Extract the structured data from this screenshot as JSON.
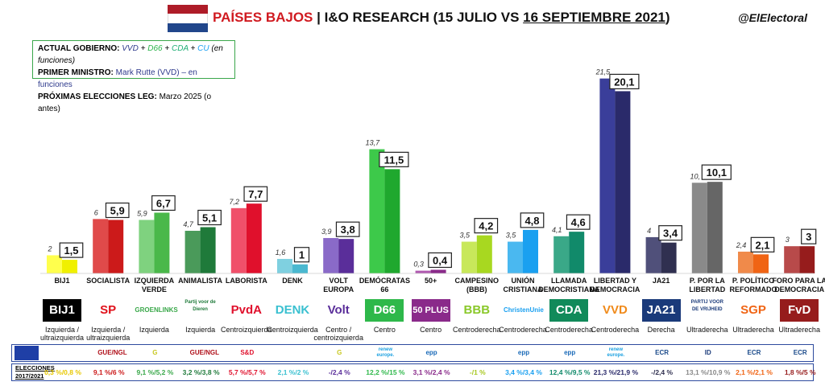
{
  "header": {
    "country": "PAÍSES BAJOS",
    "separator": " | ",
    "pollster": "I&O RESEARCH (15 JULIO VS ",
    "date_new": "16 SEPTIEMBRE 2021",
    "close_paren": ")",
    "handle": "@ElElectoral"
  },
  "info": {
    "gov_label": "ACTUAL GOBIERNO:",
    "gov_vvd": "VVD",
    "gov_d66": "D66",
    "gov_cda": "CDA",
    "gov_cu": "CU",
    "gov_suffix": "(en funciones)",
    "pm_label": "PRIMER MINISTRO:",
    "pm_value": "Mark Rutte (VVD) – en funciones",
    "next_label": "PRÓXIMAS ELECCIONES LEG:",
    "next_value": "Marzo 2025 (o antes)"
  },
  "colors": {
    "flag": [
      "#ae1c28",
      "#ffffff",
      "#21468b"
    ],
    "box_border": "#3aa64a",
    "band_border": "#2d4a9e"
  },
  "chart_data": {
    "type": "bar",
    "title": "PAÍSES BAJOS | I&O RESEARCH (15 JULIO VS 16 SEPTIEMBRE 2021)",
    "series": [
      {
        "name": "15 julio",
        "values": [
          2,
          6,
          5.9,
          4.7,
          7.2,
          1.6,
          3.9,
          13.7,
          0.3,
          3.5,
          3.5,
          4.1,
          21.5,
          4,
          10,
          2.4,
          3
        ]
      },
      {
        "name": "16 septiembre 2021",
        "values": [
          1.5,
          5.9,
          6.7,
          5.1,
          7.7,
          1,
          3.8,
          11.5,
          0.4,
          4.2,
          4.8,
          4.6,
          20.1,
          3.4,
          10.1,
          2.1,
          3
        ]
      }
    ],
    "old_labels": [
      "2",
      "6",
      "5,9",
      "4,7",
      "7,2",
      "1,6",
      "3,9",
      "13,7",
      "0,3",
      "3,5",
      "3,5",
      "4,1",
      "21,5",
      "4",
      "10,",
      "2,4",
      "3"
    ],
    "new_labels": [
      "1,5",
      "5,9",
      "6,7",
      "5,1",
      "7,7",
      "1",
      "3,8",
      "11,5",
      "0,4",
      "4,2",
      "4,8",
      "4,6",
      "20,1",
      "3,4",
      "10,1",
      "2,1",
      "3"
    ],
    "categories": [
      "BIJ1",
      "SOCIALISTA",
      "IZQUIERDA VERDE",
      "ANIMALISTA",
      "LABORISTA",
      "DENK",
      "VOLT EUROPA",
      "DEMÓCRATAS 66",
      "50+",
      "CAMPESINO (BBB)",
      "UNIÓN CRISTIANA",
      "LLAMADA DEMOCRISTIANA",
      "LIBERTAD Y DEMOCRACIA",
      "JA21",
      "P. POR LA LIBERTAD",
      "P. POLÍTICO REFORMADO",
      "FORO PARA LA DEMOCRACIA"
    ],
    "category_lines": [
      [
        "BIJ1"
      ],
      [
        "SOCIALISTA"
      ],
      [
        "IZQUIERDA",
        "VERDE"
      ],
      [
        "ANIMALISTA"
      ],
      [
        "LABORISTA"
      ],
      [
        "DENK"
      ],
      [
        "VOLT",
        "EUROPA"
      ],
      [
        "DEMÓCRATAS",
        "66"
      ],
      [
        "50+"
      ],
      [
        "CAMPESINO",
        "(BBB)"
      ],
      [
        "UNIÓN",
        "CRISTIANA"
      ],
      [
        "LLAMADA",
        "DEMOCRISTIANA"
      ],
      [
        "LIBERTAD Y",
        "DEMOCRACIA"
      ],
      [
        "JA21"
      ],
      [
        "P. POR LA",
        "LIBERTAD"
      ],
      [
        "P. POLÍTICO",
        "REFORMADO"
      ],
      [
        "FORO PARA LA",
        "DEMOCRACIA"
      ]
    ],
    "bar_colors_old": [
      "#ffff4d",
      "#e04a4a",
      "#7fd27f",
      "#4a9a5a",
      "#f0506a",
      "#7fd0e0",
      "#8a6ac8",
      "#3dc94a",
      "#b05ab0",
      "#c8e85a",
      "#4ab8f0",
      "#3aa888",
      "#3a3e9a",
      "#50507a",
      "#8a8a8a",
      "#f08a4a",
      "#b84a4a"
    ],
    "bar_colors_new": [
      "#f0f000",
      "#cc1a1a",
      "#4ab84a",
      "#1f7a3a",
      "#e0102c",
      "#4ab8d0",
      "#5a2e9a",
      "#1fa82e",
      "#8a2a8a",
      "#a8d820",
      "#1aa0f0",
      "#118a6a",
      "#2a2a6a",
      "#303050",
      "#666666",
      "#f06414",
      "#961c1c"
    ],
    "ylim": [
      0,
      22
    ]
  },
  "logos": [
    {
      "text": "BIJ1",
      "bg": "#000000",
      "fg": "#ffffff",
      "icon": "bij1-logo"
    },
    {
      "text": "SP",
      "bg": "#ffffff",
      "fg": "#e0101a",
      "icon": "sp-logo"
    },
    {
      "text": "GROENLINKS",
      "bg": "#ffffff",
      "fg": "#3aa84a",
      "icon": "groenlinks-logo"
    },
    {
      "text": "Partij voor de Dieren",
      "bg": "#ffffff",
      "fg": "#1f7a3a",
      "icon": "pvdd-logo"
    },
    {
      "text": "PvdA",
      "bg": "#ffffff",
      "fg": "#e0102c",
      "icon": "pvda-logo"
    },
    {
      "text": "DENK",
      "bg": "#ffffff",
      "fg": "#3ac0d0",
      "icon": "denk-logo"
    },
    {
      "text": "Volt",
      "bg": "#ffffff",
      "fg": "#5a2e9a",
      "icon": "volt-logo"
    },
    {
      "text": "D66",
      "bg": "#2eb84a",
      "fg": "#ffffff",
      "icon": "d66-logo"
    },
    {
      "text": "50 PLUS",
      "bg": "#8a2a8a",
      "fg": "#ffffff",
      "icon": "50plus-logo"
    },
    {
      "text": "BBB",
      "bg": "#ffffff",
      "fg": "#8ac82a",
      "icon": "bbb-logo"
    },
    {
      "text": "ChristenUnie",
      "bg": "#ffffff",
      "fg": "#1aa0f0",
      "icon": "christenunie-logo"
    },
    {
      "text": "CDA",
      "bg": "#118a5a",
      "fg": "#ffffff",
      "icon": "cda-logo"
    },
    {
      "text": "VVD",
      "bg": "#ffffff",
      "fg": "#f08a1a",
      "icon": "vvd-logo"
    },
    {
      "text": "JA21",
      "bg": "#1a3a7a",
      "fg": "#ffffff",
      "icon": "ja21-logo"
    },
    {
      "text": "PARTIJ VOOR DE VRIJHEID",
      "bg": "#ffffff",
      "fg": "#1a3a7a",
      "icon": "pvv-logo"
    },
    {
      "text": "SGP",
      "bg": "#ffffff",
      "fg": "#f06414",
      "icon": "sgp-logo"
    },
    {
      "text": "FvD",
      "bg": "#961c1c",
      "fg": "#ffffff",
      "icon": "fvd-logo"
    }
  ],
  "ideologies": [
    [
      "Izquierda /",
      "ultraizquierda"
    ],
    [
      "Izquierda /",
      "ultraizquierda"
    ],
    [
      "Izquierda"
    ],
    [
      "Izquierda"
    ],
    [
      "Centroizquierda"
    ],
    [
      "Centroizquierda"
    ],
    [
      "Centro /",
      "centroizquierda"
    ],
    [
      "Centro"
    ],
    [
      "Centro"
    ],
    [
      "Centroderecha"
    ],
    [
      "Centroderecha"
    ],
    [
      "Centroderecha"
    ],
    [
      "Centroderecha"
    ],
    [
      "Derecha"
    ],
    [
      "Ultraderecha"
    ],
    [
      "Ultraderecha"
    ],
    [
      "Ultraderecha"
    ]
  ],
  "eu_groups": [
    {
      "text": "",
      "color": "#ffffff",
      "icon": "none"
    },
    {
      "text": "GUE/NGL",
      "color": "#b0101a",
      "icon": "gue-ngl-icon"
    },
    {
      "text": "G",
      "color": "#c8c820",
      "icon": "greens-icon"
    },
    {
      "text": "GUE/NGL",
      "color": "#b0101a",
      "icon": "gue-ngl-icon"
    },
    {
      "text": "S&D",
      "color": "#e0102c",
      "icon": "sd-icon"
    },
    {
      "text": "",
      "color": "#ffffff",
      "icon": "none"
    },
    {
      "text": "G",
      "color": "#c8c820",
      "icon": "greens-icon"
    },
    {
      "text": "renew europe.",
      "color": "#1aa0e0",
      "icon": "renew-icon"
    },
    {
      "text": "epp",
      "color": "#1a6ab8",
      "icon": "epp-icon"
    },
    {
      "text": "",
      "color": "#ffffff",
      "icon": "none"
    },
    {
      "text": "epp",
      "color": "#1a6ab8",
      "icon": "epp-icon"
    },
    {
      "text": "epp",
      "color": "#1a6ab8",
      "icon": "epp-icon"
    },
    {
      "text": "renew europe.",
      "color": "#1aa0e0",
      "icon": "renew-icon"
    },
    {
      "text": "ECR",
      "color": "#1a4a8a",
      "icon": "ecr-icon"
    },
    {
      "text": "ID",
      "color": "#1a3a7a",
      "icon": "id-icon"
    },
    {
      "text": "ECR",
      "color": "#1a4a8a",
      "icon": "ecr-icon"
    },
    {
      "text": "ECR",
      "color": "#1a4a8a",
      "icon": "ecr-icon"
    }
  ],
  "elections": {
    "label_line1": "ELECCIONES",
    "label_line2": "2017/2021",
    "values": [
      "0,3 %/0,8 %",
      "9,1 %/6 %",
      "9,1 %/5,2 %",
      "3,2 %/3,8 %",
      "5,7 %/5,7 %",
      "2,1 %/2 %",
      "-/2,4 %",
      "12,2 %/15 %",
      "3,1 %/2,4 %",
      "-/1 %",
      "3,4 %/3,4 %",
      "12,4 %/9,5 %",
      "21,3 %/21,9 %",
      "-/2,4 %",
      "13,1 %/10,9 %",
      "2,1 %/2,1 %",
      "1,8 %/5 %"
    ],
    "colors": [
      "#e8c800",
      "#cc1a1a",
      "#3aa84a",
      "#1f7a3a",
      "#e0102c",
      "#3ac0d0",
      "#5a2e9a",
      "#2eb84a",
      "#8a2a8a",
      "#a8c820",
      "#1aa0f0",
      "#118a6a",
      "#2a2a6a",
      "#303050",
      "#888888",
      "#f06414",
      "#961c1c"
    ]
  }
}
